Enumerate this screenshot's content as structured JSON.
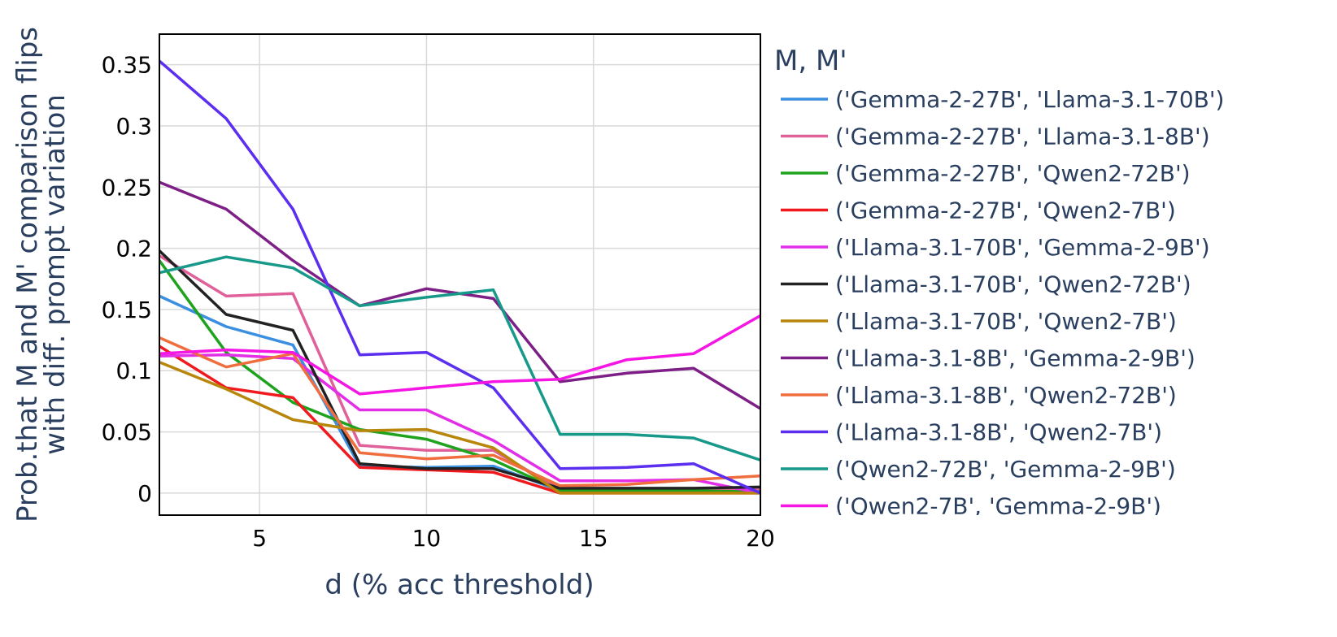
{
  "chart_data": {
    "type": "line",
    "title": "",
    "xlabel": "d (% acc threshold)",
    "ylabel_lines": [
      "Prob.that M and M' comparison flips",
      "with diff. prompt variation"
    ],
    "xlim": [
      2,
      20
    ],
    "ylim": [
      -0.018,
      0.375
    ],
    "xticks": [
      5,
      10,
      15,
      20
    ],
    "xtick_labels": [
      "5",
      "10",
      "15",
      "20"
    ],
    "yticks": [
      0,
      0.05,
      0.1,
      0.15,
      0.2,
      0.25,
      0.3,
      0.35
    ],
    "ytick_labels": [
      "0",
      "0.05",
      "0.1",
      "0.15",
      "0.2",
      "0.25",
      "0.3",
      "0.35"
    ],
    "grid": true,
    "legend_title": "M, M'",
    "legend_position": "right",
    "x": [
      2,
      4,
      6,
      8,
      10,
      12,
      14,
      16,
      18,
      20
    ],
    "series": [
      {
        "name": "('Gemma-2-27B', 'Llama-3.1-70B')",
        "color": "#3b8fe0",
        "values": [
          0.161,
          0.136,
          0.121,
          0.022,
          0.021,
          0.022,
          0.002,
          0.002,
          0.002,
          0.001
        ]
      },
      {
        "name": "('Gemma-2-27B', 'Llama-3.1-8B')",
        "color": "#e0609a",
        "values": [
          0.194,
          0.161,
          0.163,
          0.039,
          0.035,
          0.035,
          0.003,
          0.003,
          0.003,
          0.003
        ]
      },
      {
        "name": "('Gemma-2-27B', 'Qwen2-72B')",
        "color": "#1fa31f",
        "values": [
          0.19,
          0.115,
          0.074,
          0.052,
          0.044,
          0.027,
          0.002,
          0.002,
          0.002,
          0.001
        ]
      },
      {
        "name": "('Gemma-2-27B', 'Qwen2-7B')",
        "color": "#f0191e",
        "values": [
          0.12,
          0.086,
          0.078,
          0.021,
          0.019,
          0.017,
          0.0,
          0.0,
          0.0,
          0.0
        ]
      },
      {
        "name": "('Llama-3.1-70B', 'Gemma-2-9B')",
        "color": "#e32ee8",
        "values": [
          0.112,
          0.113,
          0.11,
          0.068,
          0.068,
          0.043,
          0.01,
          0.01,
          0.011,
          0.0
        ]
      },
      {
        "name": "('Llama-3.1-70B', 'Qwen2-72B')",
        "color": "#222222",
        "values": [
          0.198,
          0.146,
          0.133,
          0.024,
          0.02,
          0.02,
          0.004,
          0.004,
          0.004,
          0.005
        ]
      },
      {
        "name": "('Llama-3.1-70B', 'Qwen2-7B')",
        "color": "#b8860b",
        "values": [
          0.107,
          0.085,
          0.06,
          0.051,
          0.052,
          0.037,
          0.0,
          0.0,
          0.0,
          0.0
        ]
      },
      {
        "name": "('Llama-3.1-8B', 'Gemma-2-9B')",
        "color": "#7d1f86",
        "values": [
          0.254,
          0.232,
          0.19,
          0.153,
          0.167,
          0.159,
          0.091,
          0.098,
          0.102,
          0.069
        ]
      },
      {
        "name": "('Llama-3.1-8B', 'Qwen2-72B')",
        "color": "#f06d3e",
        "values": [
          0.127,
          0.103,
          0.114,
          0.033,
          0.028,
          0.031,
          0.006,
          0.007,
          0.011,
          0.014
        ]
      },
      {
        "name": "('Llama-3.1-8B', 'Qwen2-7B')",
        "color": "#5b2ef0",
        "values": [
          0.353,
          0.306,
          0.232,
          0.113,
          0.115,
          0.086,
          0.02,
          0.021,
          0.024,
          0.0
        ]
      },
      {
        "name": "('Qwen2-72B', 'Gemma-2-9B')",
        "color": "#17998a",
        "values": [
          0.18,
          0.193,
          0.184,
          0.153,
          0.16,
          0.166,
          0.048,
          0.048,
          0.045,
          0.027
        ]
      },
      {
        "name": "('Qwen2-7B', 'Gemma-2-9B')",
        "color": "#f516e4",
        "values": [
          0.114,
          0.117,
          0.115,
          0.081,
          0.086,
          0.091,
          0.093,
          0.109,
          0.114,
          0.145
        ]
      }
    ]
  }
}
